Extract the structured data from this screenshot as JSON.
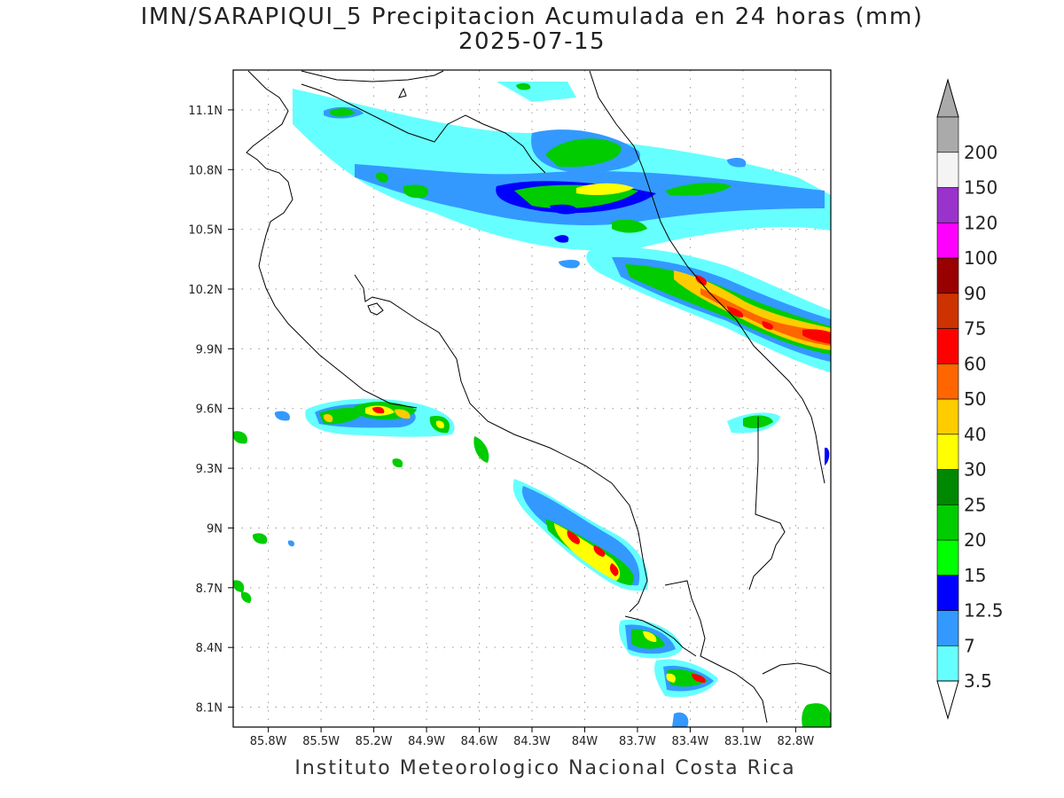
{
  "title_line1": "IMN/SARAPIQUI_5 Precipitacion Acumulada en 24 horas (mm)",
  "title_line2": "2025-07-15",
  "credit": "Instituto Meteorologico Nacional Costa Rica",
  "map": {
    "lon_ticks": [
      {
        "label": "85.8W",
        "lon": -85.8
      },
      {
        "label": "85.5W",
        "lon": -85.5
      },
      {
        "label": "85.2W",
        "lon": -85.2
      },
      {
        "label": "84.9W",
        "lon": -84.9
      },
      {
        "label": "84.6W",
        "lon": -84.6
      },
      {
        "label": "84.3W",
        "lon": -84.3
      },
      {
        "label": "84W",
        "lon": -84.0
      },
      {
        "label": "83.7W",
        "lon": -83.7
      },
      {
        "label": "83.4W",
        "lon": -83.4
      },
      {
        "label": "83.1W",
        "lon": -83.1
      },
      {
        "label": "82.8W",
        "lon": -82.8
      }
    ],
    "lat_ticks": [
      {
        "label": "11.1N",
        "lat": 11.1
      },
      {
        "label": "10.8N",
        "lat": 10.8
      },
      {
        "label": "10.5N",
        "lat": 10.5
      },
      {
        "label": "10.2N",
        "lat": 10.2
      },
      {
        "label": "9.9N",
        "lat": 9.9
      },
      {
        "label": "9.6N",
        "lat": 9.6
      },
      {
        "label": "9.3N",
        "lat": 9.3
      },
      {
        "label": "9N",
        "lat": 9.0
      },
      {
        "label": "8.7N",
        "lat": 8.7
      },
      {
        "label": "8.4N",
        "lat": 8.4
      },
      {
        "label": "8.1N",
        "lat": 8.1
      }
    ],
    "lon_range": [
      -86.0,
      -82.6
    ],
    "lat_range": [
      8.0,
      11.3
    ]
  },
  "colorbar": {
    "top_color": "#aaaaaa",
    "bottom_color": "#ffffff",
    "bands": [
      {
        "label": "3.5",
        "color": "#66ffff"
      },
      {
        "label": "7",
        "color": "#3399ff"
      },
      {
        "label": "12.5",
        "color": "#0000ff"
      },
      {
        "label": "15",
        "color": "#00ff00"
      },
      {
        "label": "20",
        "color": "#00cc00"
      },
      {
        "label": "25",
        "color": "#008800"
      },
      {
        "label": "30",
        "color": "#ffff00"
      },
      {
        "label": "40",
        "color": "#ffcc00"
      },
      {
        "label": "50",
        "color": "#ff6600"
      },
      {
        "label": "60",
        "color": "#ff0000"
      },
      {
        "label": "75",
        "color": "#cc3300"
      },
      {
        "label": "90",
        "color": "#990000"
      },
      {
        "label": "100",
        "color": "#ff00ff"
      },
      {
        "label": "120",
        "color": "#9933cc"
      },
      {
        "label": "150",
        "color": "#f4f4f4"
      },
      {
        "label": "200",
        "color": "#aaaaaa"
      }
    ]
  }
}
